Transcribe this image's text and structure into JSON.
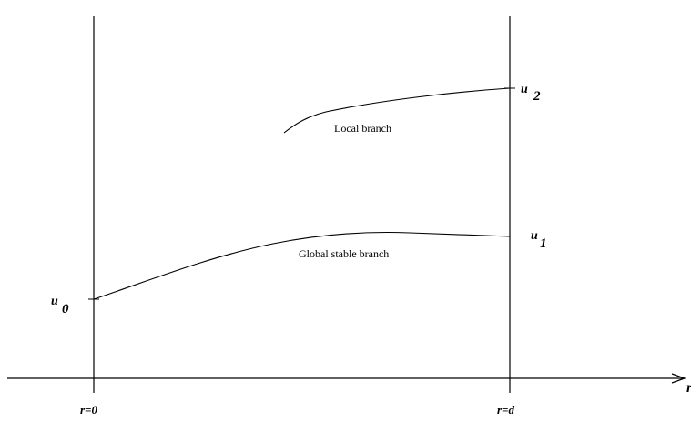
{
  "diagram": {
    "axis": {
      "x_label": "r"
    },
    "boundaries": {
      "left_label": "r=0",
      "right_label": "r=d"
    },
    "branches": {
      "local": {
        "label": "Local branch"
      },
      "global": {
        "label": "Global stable branch"
      }
    },
    "points": {
      "u0": {
        "base": "u",
        "sub": "0"
      },
      "u1": {
        "base": "u",
        "sub": "1"
      },
      "u2": {
        "base": "u",
        "sub": "2"
      }
    }
  }
}
